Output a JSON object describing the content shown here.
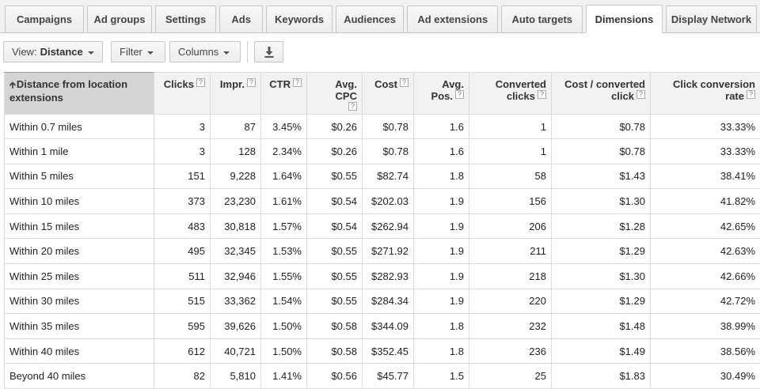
{
  "tabs": [
    "Campaigns",
    "Ad groups",
    "Settings",
    "Ads",
    "Keywords",
    "Audiences",
    "Ad extensions",
    "Auto targets",
    "Dimensions",
    "Display Network"
  ],
  "active_tab": "Dimensions",
  "toolbar": {
    "view_label": "View:",
    "view_value": "Distance",
    "filter_label": "Filter",
    "columns_label": "Columns",
    "download_icon": "download-icon"
  },
  "table": {
    "headers": [
      {
        "l1": "Distance from location",
        "l2": "extensions",
        "help": false,
        "sort": true
      },
      {
        "l1": "Clicks",
        "l2": "",
        "help": true
      },
      {
        "l1": "Impr.",
        "l2": "",
        "help": true
      },
      {
        "l1": "CTR",
        "l2": "",
        "help": true
      },
      {
        "l1": "Avg. CPC",
        "l2": "",
        "help": true,
        "help_below": true
      },
      {
        "l1": "Cost",
        "l2": "",
        "help": true
      },
      {
        "l1": "Avg.",
        "l2": "Pos.",
        "help": true
      },
      {
        "l1": "Converted",
        "l2": "clicks",
        "help": true
      },
      {
        "l1": "Cost / converted",
        "l2": "click",
        "help": true
      },
      {
        "l1": "Click conversion",
        "l2": "rate",
        "help": true
      }
    ],
    "rows": [
      [
        "Within 0.7 miles",
        "3",
        "87",
        "3.45%",
        "$0.26",
        "$0.78",
        "1.6",
        "1",
        "$0.78",
        "33.33%"
      ],
      [
        "Within 1 mile",
        "3",
        "128",
        "2.34%",
        "$0.26",
        "$0.78",
        "1.6",
        "1",
        "$0.78",
        "33.33%"
      ],
      [
        "Within 5 miles",
        "151",
        "9,228",
        "1.64%",
        "$0.55",
        "$82.74",
        "1.8",
        "58",
        "$1.43",
        "38.41%"
      ],
      [
        "Within 10 miles",
        "373",
        "23,230",
        "1.61%",
        "$0.54",
        "$202.03",
        "1.9",
        "156",
        "$1.30",
        "41.82%"
      ],
      [
        "Within 15 miles",
        "483",
        "30,818",
        "1.57%",
        "$0.54",
        "$262.94",
        "1.9",
        "206",
        "$1.28",
        "42.65%"
      ],
      [
        "Within 20 miles",
        "495",
        "32,345",
        "1.53%",
        "$0.55",
        "$271.92",
        "1.9",
        "211",
        "$1.29",
        "42.63%"
      ],
      [
        "Within 25 miles",
        "511",
        "32,946",
        "1.55%",
        "$0.55",
        "$282.93",
        "1.9",
        "218",
        "$1.30",
        "42.66%"
      ],
      [
        "Within 30 miles",
        "515",
        "33,362",
        "1.54%",
        "$0.55",
        "$284.34",
        "1.9",
        "220",
        "$1.29",
        "42.72%"
      ],
      [
        "Within 35 miles",
        "595",
        "39,626",
        "1.50%",
        "$0.58",
        "$344.09",
        "1.8",
        "232",
        "$1.48",
        "38.99%"
      ],
      [
        "Within 40 miles",
        "612",
        "40,721",
        "1.50%",
        "$0.58",
        "$352.45",
        "1.8",
        "236",
        "$1.49",
        "38.56%"
      ],
      [
        "Beyond 40 miles",
        "82",
        "5,810",
        "1.41%",
        "$0.56",
        "$45.77",
        "1.5",
        "25",
        "$1.83",
        "30.49%"
      ]
    ]
  }
}
